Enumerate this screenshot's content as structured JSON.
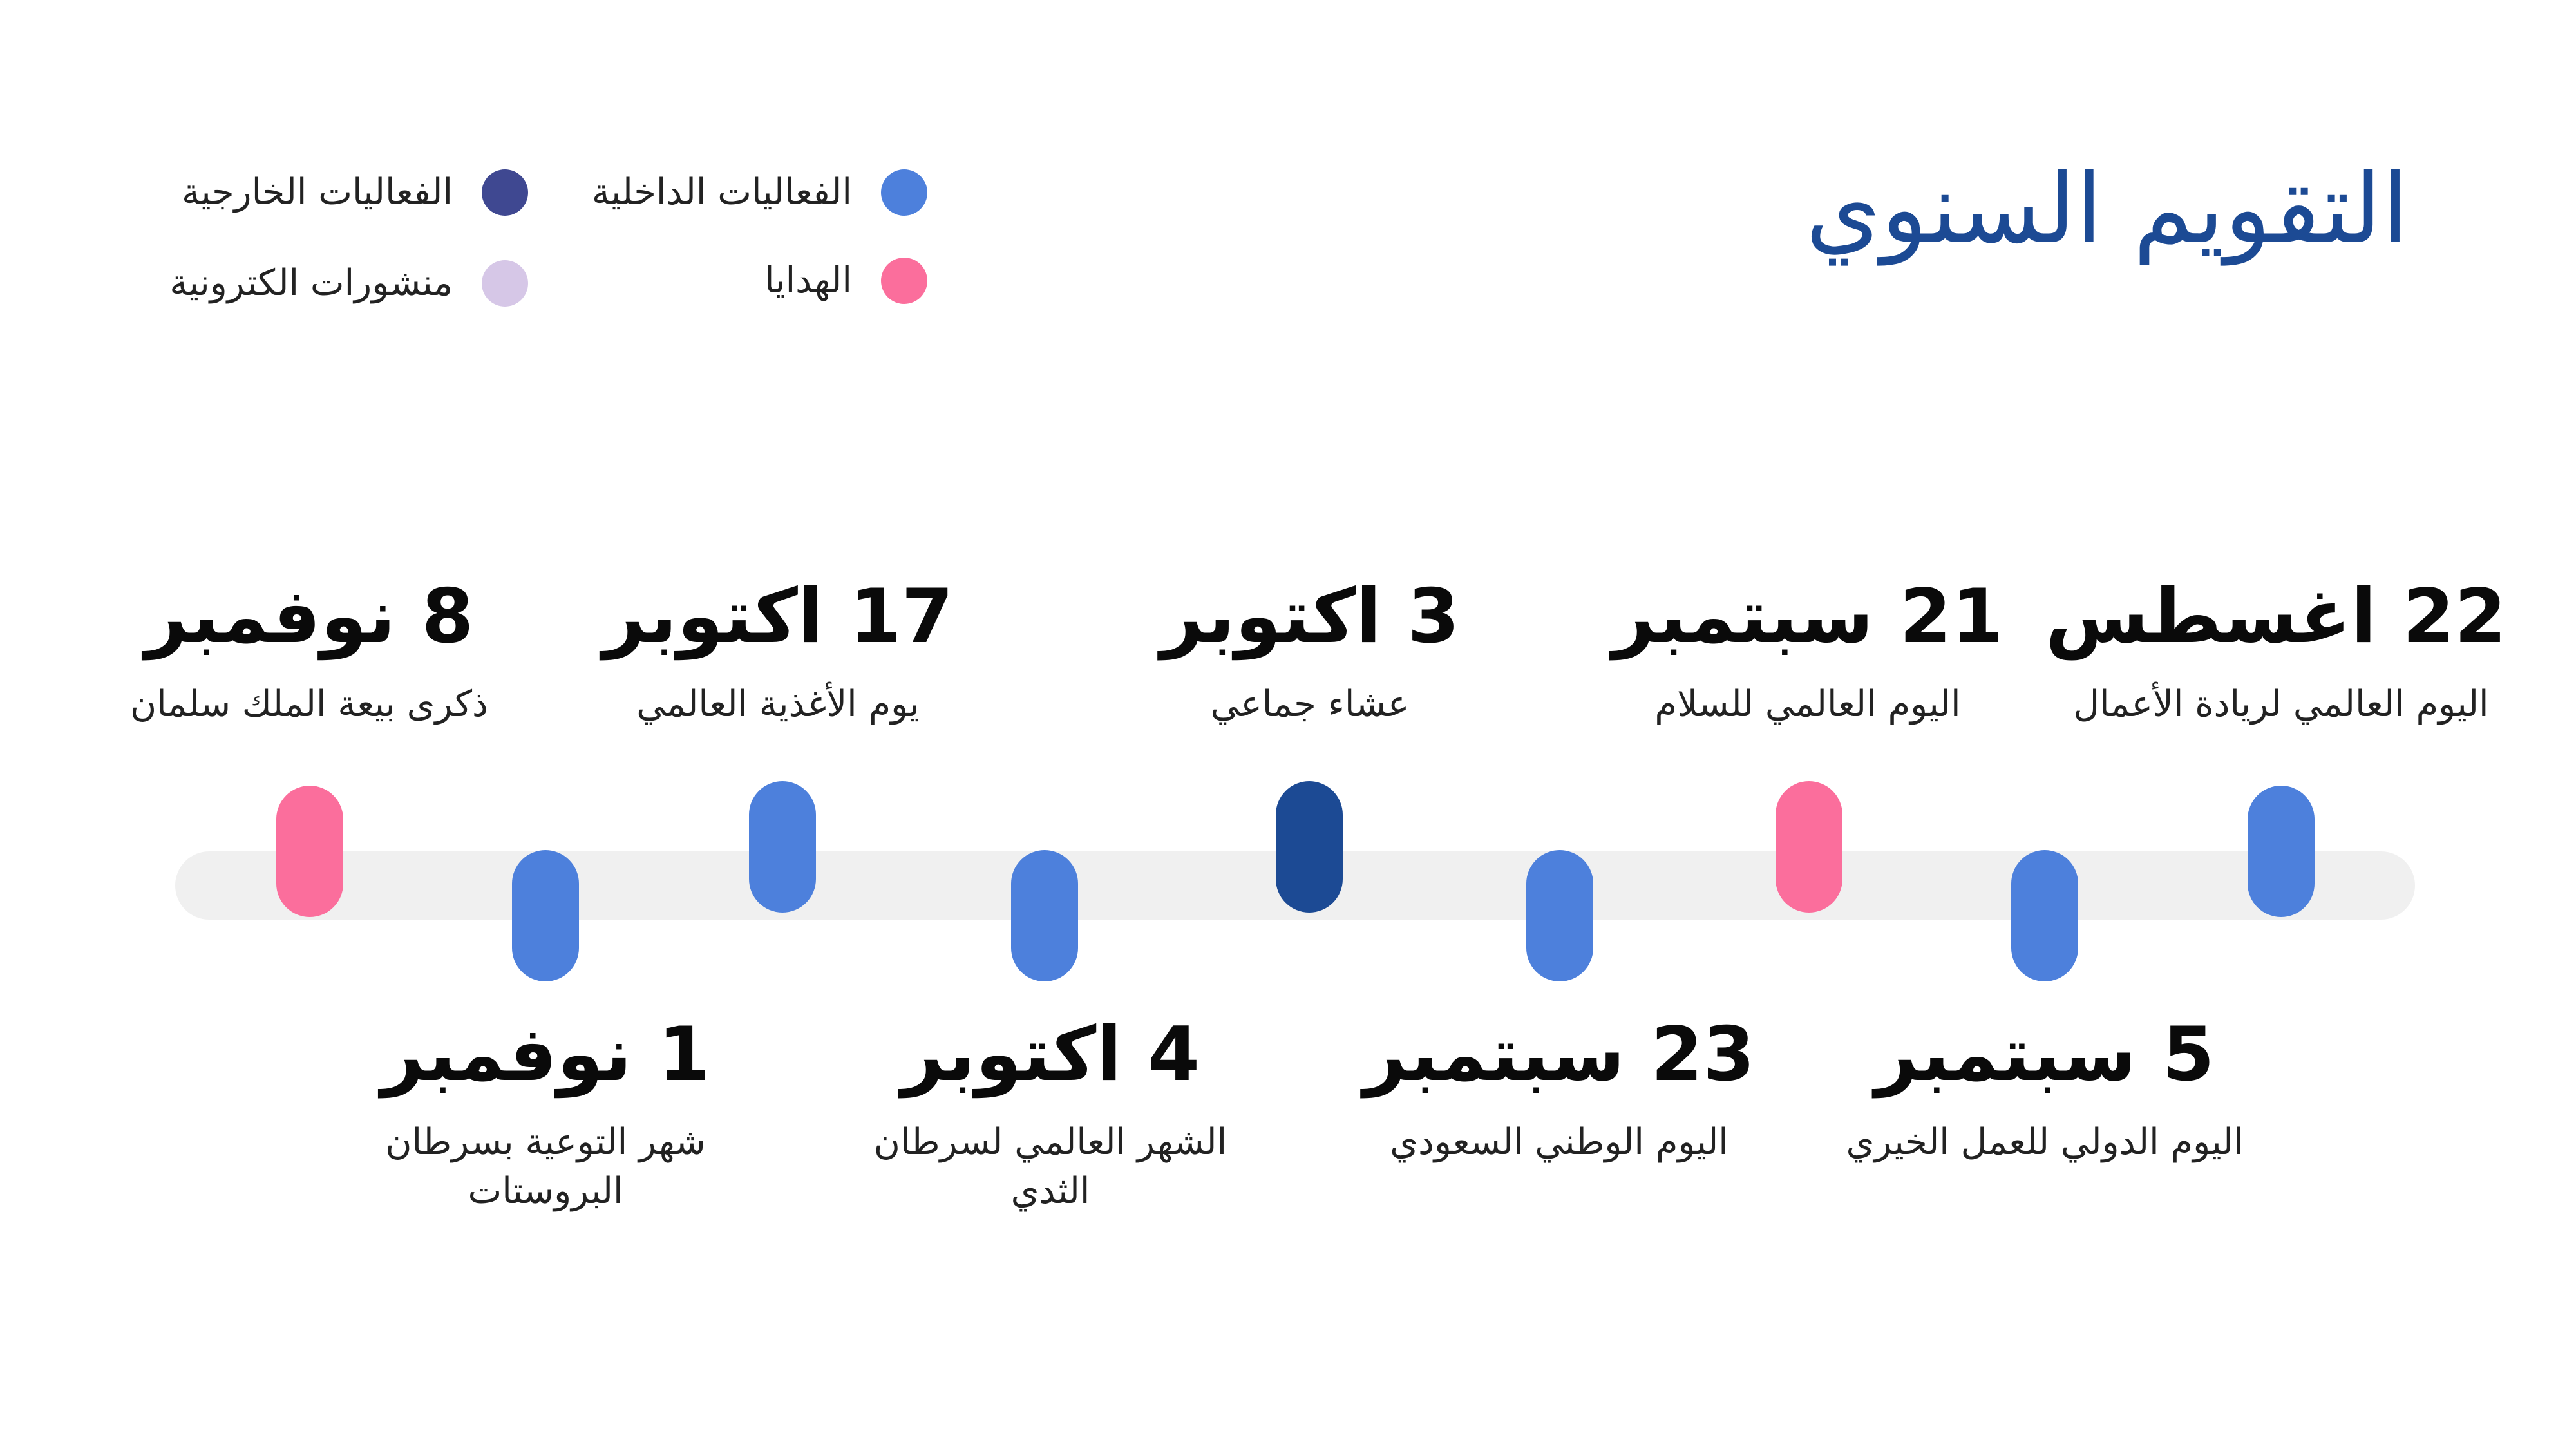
{
  "title": "التقويم السنوي",
  "legend": [
    {
      "label": "الفعاليات الداخلية",
      "color": "#4d80dc"
    },
    {
      "label": "الفعاليات الخارجية",
      "color": "#3f4891"
    },
    {
      "label": "الهدايا",
      "color": "#fb6e9c"
    },
    {
      "label": "منشورات الكترونية",
      "color": "#d6c7e7"
    }
  ],
  "timeline": [
    {
      "date": "22 اغسطس",
      "name": "اليوم العالمي لريادة الأعمال",
      "category": "internal",
      "color": "#4d80dc",
      "row": "top"
    },
    {
      "date": "5 سبتمبر",
      "name": "اليوم الدولي للعمل الخيري",
      "category": "internal",
      "color": "#4d80dc",
      "row": "bottom"
    },
    {
      "date": "21 سبتمبر",
      "name": "اليوم العالمي للسلام",
      "category": "gifts",
      "color": "#fb6e9c",
      "row": "top"
    },
    {
      "date": "23 سبتمبر",
      "name": "اليوم الوطني السعودي",
      "category": "internal",
      "color": "#4d80dc",
      "row": "bottom"
    },
    {
      "date": "3 اكتوبر",
      "name": "عشاء جماعي",
      "category": "external",
      "color": "#1c4a94",
      "row": "top"
    },
    {
      "date": "4 اكتوبر",
      "name": "الشهر العالمي لسرطان الثدي",
      "category": "internal",
      "color": "#4d80dc",
      "row": "bottom"
    },
    {
      "date": "17 اكتوبر",
      "name": "يوم الأغذية العالمي",
      "category": "internal",
      "color": "#4d80dc",
      "row": "top"
    },
    {
      "date": "1 نوفمبر",
      "name": "شهر التوعية بسرطان البروستات",
      "category": "internal",
      "color": "#4d80dc",
      "row": "bottom"
    },
    {
      "date": "8 نوفمبر",
      "name": "ذكرى بيعة الملك سلمان",
      "category": "gifts",
      "color": "#fb6e9c",
      "row": "top"
    }
  ]
}
